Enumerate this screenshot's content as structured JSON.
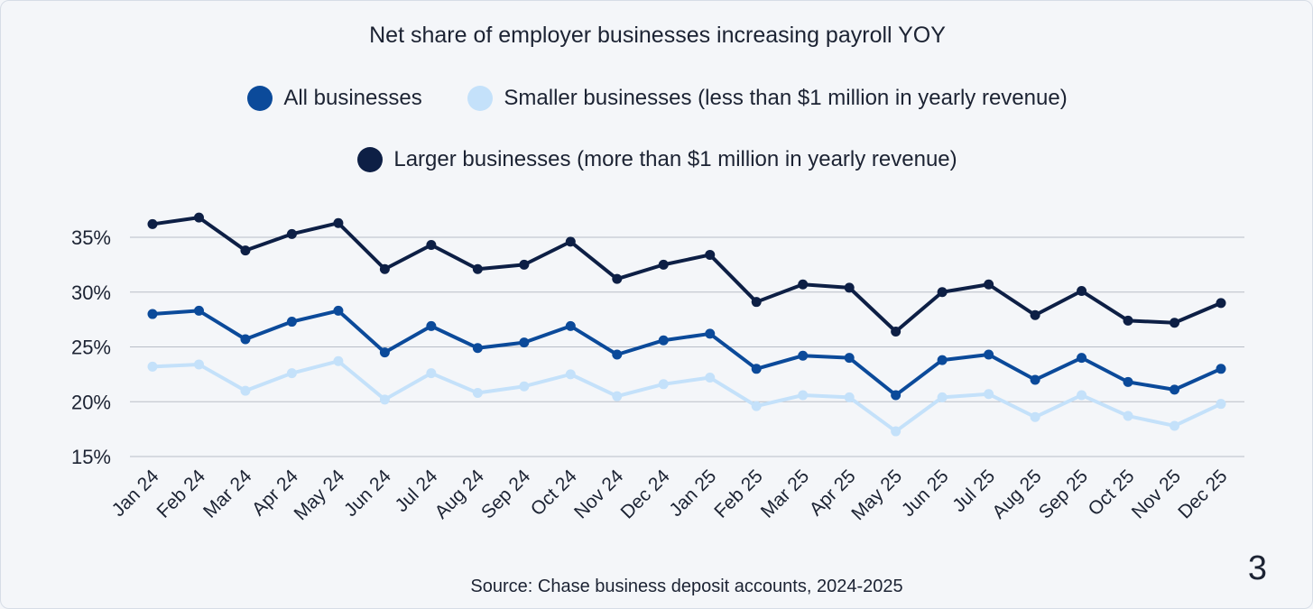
{
  "chart_data": {
    "type": "line",
    "title": "Net share of employer businesses increasing payroll YOY",
    "categories": [
      "Jan 24",
      "Feb 24",
      "Mar 24",
      "Apr 24",
      "May 24",
      "Jun 24",
      "Jul 24",
      "Aug 24",
      "Sep 24",
      "Oct 24",
      "Nov 24",
      "Dec 24",
      "Jan 25",
      "Feb 25",
      "Mar 25",
      "Apr 25",
      "May 25",
      "Jun 25",
      "Jul 25",
      "Aug 25",
      "Sep 25",
      "Oct 25",
      "Nov 25",
      "Dec 25"
    ],
    "y_ticks": [
      15,
      20,
      25,
      30,
      35
    ],
    "y_tick_labels": [
      "15%",
      "20%",
      "25%",
      "30%",
      "35%"
    ],
    "ylim": [
      15,
      35
    ],
    "grid": true,
    "legend_placement": "top-center",
    "series": [
      {
        "name": "All businesses",
        "color": "#0b4a9a",
        "values": [
          28.0,
          28.3,
          25.7,
          27.3,
          28.3,
          24.5,
          26.9,
          24.9,
          25.4,
          26.9,
          24.3,
          25.6,
          26.2,
          23.0,
          24.2,
          24.0,
          20.6,
          23.8,
          24.3,
          22.0,
          24.0,
          21.8,
          21.1,
          23.0
        ]
      },
      {
        "name": "Smaller businesses (less than $1 million in yearly revenue)",
        "color": "#c4e1fa",
        "values": [
          23.2,
          23.4,
          21.0,
          22.6,
          23.7,
          20.2,
          22.6,
          20.8,
          21.4,
          22.5,
          20.5,
          21.6,
          22.2,
          19.6,
          20.6,
          20.4,
          17.3,
          20.4,
          20.7,
          18.6,
          20.6,
          18.7,
          17.8,
          19.8
        ]
      },
      {
        "name": "Larger businesses (more than $1 million in yearly revenue)",
        "color": "#0d1f45",
        "values": [
          36.2,
          36.8,
          33.8,
          35.3,
          36.3,
          32.1,
          34.3,
          32.1,
          32.5,
          34.6,
          31.2,
          32.5,
          33.4,
          29.1,
          30.7,
          30.4,
          26.4,
          30.0,
          30.7,
          27.9,
          30.1,
          27.4,
          27.2,
          29.0
        ]
      }
    ],
    "source": "Source: Chase business deposit accounts, 2024-2025",
    "page_number": "3"
  }
}
